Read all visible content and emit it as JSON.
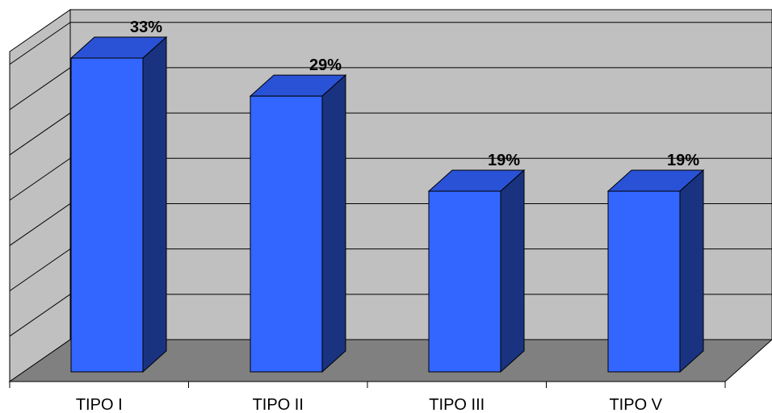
{
  "colors": {
    "bar_front": "#3366FF",
    "bar_side": "#1A3380",
    "bar_top": "#2A52D6",
    "back_wall": "#C0C0C0",
    "side_wall": "#C0C0C0",
    "floor": "#808080",
    "grid": "#000000"
  },
  "chart_data": {
    "type": "bar",
    "categories": [
      "TIPO I",
      "TIPO II",
      "TIPO III",
      "TIPO V"
    ],
    "values": [
      33,
      29,
      19,
      19
    ],
    "value_labels": [
      "33%",
      "29%",
      "19%",
      "19%"
    ],
    "ylim": [
      0,
      35
    ],
    "grid": true,
    "legend": "none"
  }
}
